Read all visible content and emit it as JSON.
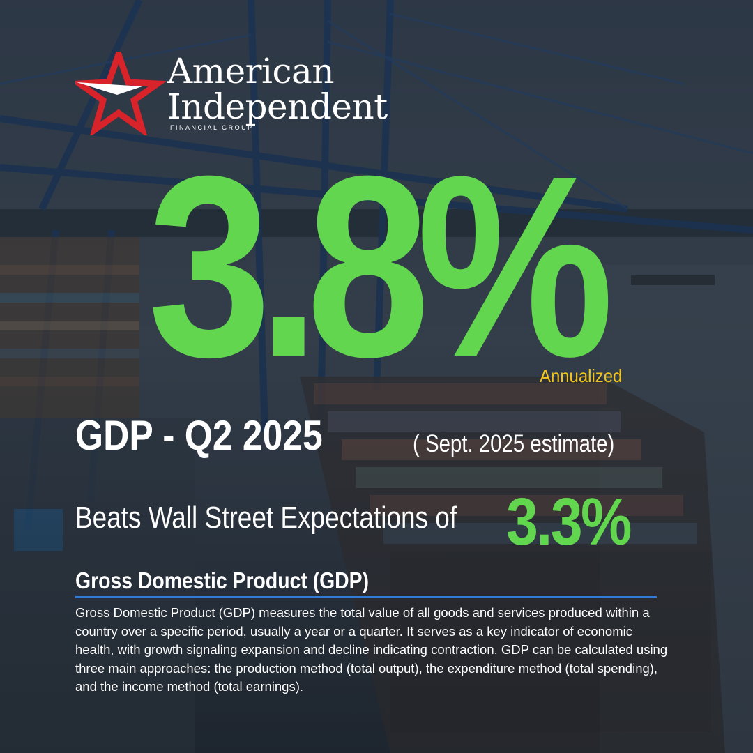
{
  "logo": {
    "line1": "American",
    "line2": "Independent",
    "subline": "FINANCIAL GROUP"
  },
  "headline": {
    "value": "3.8%",
    "qualifier": "Annualized"
  },
  "period": {
    "title": "GDP - Q2 2025",
    "estimate": "( Sept. 2025 estimate)"
  },
  "expectation": {
    "label": "Beats Wall Street Expectations of",
    "value": "3.3%"
  },
  "definition": {
    "heading": "Gross Domestic Product (GDP)",
    "body": "Gross Domestic Product (GDP) measures the total value of all goods and services produced within a country over a specific period, usually a year or a quarter. It serves as a key indicator of economic health, with growth signaling expansion and decline indicating contraction. GDP can be calculated using three main approaches: the production method (total output), the expenditure method (total spending), and the income method (total earnings)."
  },
  "colors": {
    "accent_green": "#62d64e",
    "annualized_yellow": "#f2c41a",
    "rule_blue": "#2f7bd6",
    "logo_red": "#d8232a"
  }
}
